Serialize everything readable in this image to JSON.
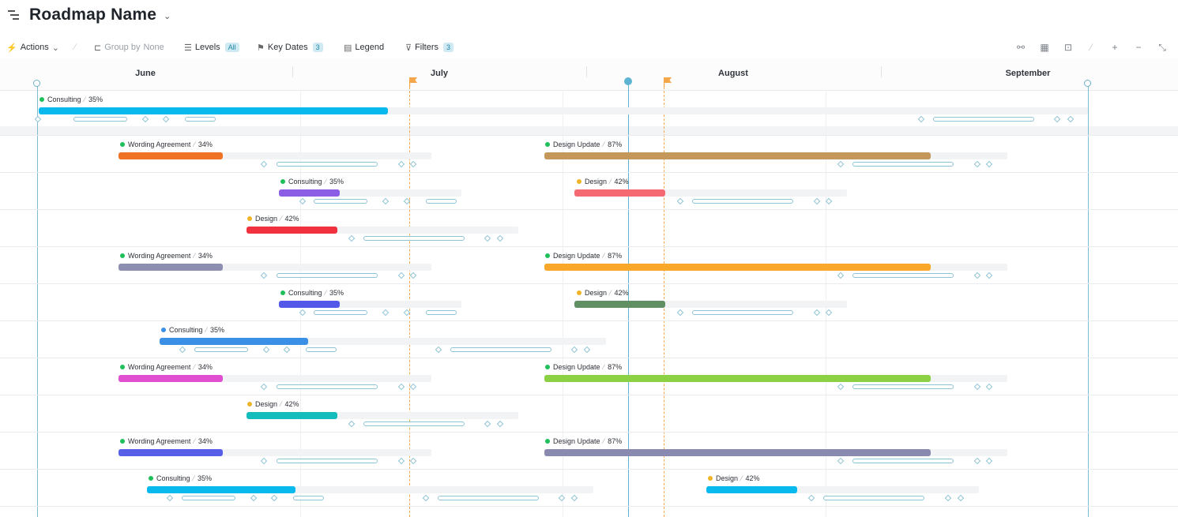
{
  "header": {
    "title": "Roadmap Name"
  },
  "toolbar": {
    "actions": "Actions",
    "group_by": "Group by",
    "group_by_value": "None",
    "levels": "Levels",
    "levels_badge": "All",
    "key_dates": "Key Dates",
    "key_dates_badge": "3",
    "legend": "Legend",
    "filters": "Filters",
    "filters_badge": "3"
  },
  "timeline": {
    "months": [
      "June",
      "July",
      "August",
      "September"
    ]
  },
  "colors": {
    "today": "#5fb3d2",
    "key_date_flag": "#f4a64a",
    "status_green": "#1fbf5a",
    "status_yellow": "#f0b429",
    "status_blue": "#3a8fe6"
  },
  "rows": [
    {
      "items": [
        {
          "name": "Consulting",
          "pct": "35%",
          "color": "#08b9ee",
          "status": "green"
        }
      ]
    },
    {
      "items": [
        {
          "name": "Wording Agreement",
          "pct": "34%",
          "color": "#f07325",
          "status": "green"
        },
        {
          "name": "Design Update",
          "pct": "87%",
          "color": "#c3985a",
          "status": "green"
        }
      ]
    },
    {
      "items": [
        {
          "name": "Consulting",
          "pct": "35%",
          "color": "#8c5ee6",
          "status": "green"
        },
        {
          "name": "Design",
          "pct": "42%",
          "color": "#f56a72",
          "status": "yellow"
        }
      ]
    },
    {
      "items": [
        {
          "name": "Design",
          "pct": "42%",
          "color": "#f2313e",
          "status": "yellow"
        }
      ]
    },
    {
      "items": [
        {
          "name": "Wording Agreement",
          "pct": "34%",
          "color": "#8e8fb0",
          "status": "green"
        },
        {
          "name": "Design Update",
          "pct": "87%",
          "color": "#f9a82a",
          "status": "green"
        }
      ]
    },
    {
      "items": [
        {
          "name": "Consulting",
          "pct": "35%",
          "color": "#5358e8",
          "status": "green"
        },
        {
          "name": "Design",
          "pct": "42%",
          "color": "#5f8f63",
          "status": "yellow"
        }
      ]
    },
    {
      "items": [
        {
          "name": "Consulting",
          "pct": "35%",
          "color": "#3a8fe6",
          "status": "blue"
        }
      ]
    },
    {
      "items": [
        {
          "name": "Wording Agreement",
          "pct": "34%",
          "color": "#e04fd0",
          "status": "green"
        },
        {
          "name": "Design Update",
          "pct": "87%",
          "color": "#8cd043",
          "status": "green"
        }
      ]
    },
    {
      "items": [
        {
          "name": "Design",
          "pct": "42%",
          "color": "#14bcbc",
          "status": "yellow"
        }
      ]
    },
    {
      "items": [
        {
          "name": "Wording Agreement",
          "pct": "34%",
          "color": "#575ee8",
          "status": "green"
        },
        {
          "name": "Design Update",
          "pct": "87%",
          "color": "#8a8ab0",
          "status": "green"
        }
      ]
    },
    {
      "items": [
        {
          "name": "Consulting",
          "pct": "35%",
          "color": "#08b9ee",
          "status": "green"
        },
        {
          "name": "Design",
          "pct": "42%",
          "color": "#08b9ee",
          "status": "yellow"
        }
      ]
    }
  ]
}
